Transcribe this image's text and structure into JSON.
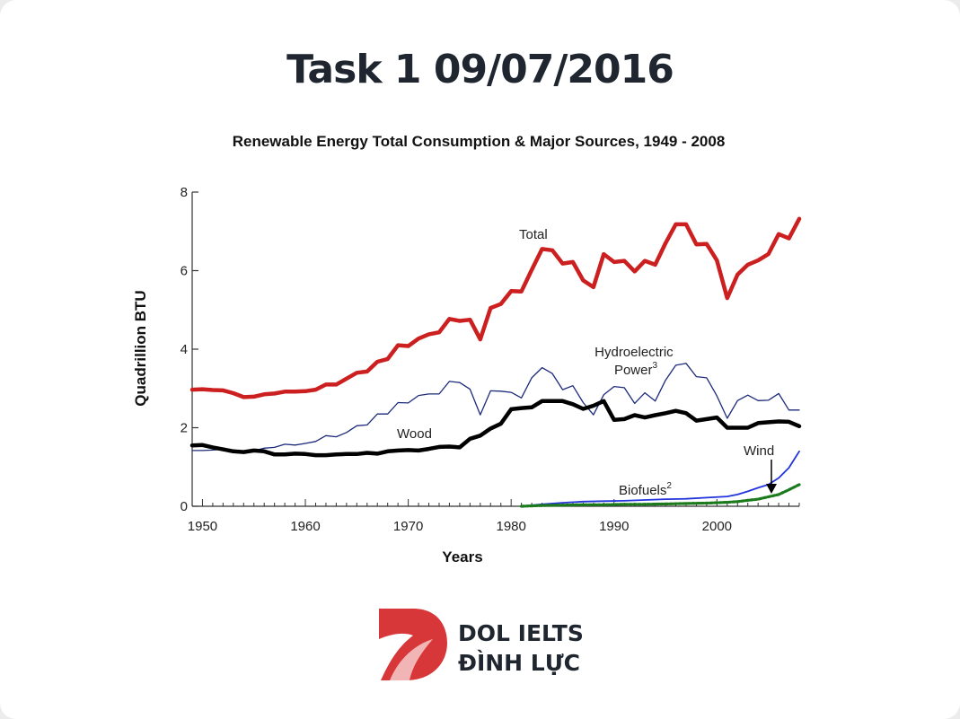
{
  "page": {
    "title": "Task 1 09/07/2016"
  },
  "brand": {
    "line1": "DOL IELTS",
    "line2": "ĐÌNH LỰC"
  },
  "chart_data": {
    "type": "line",
    "title": "Renewable Energy Total Consumption & Major Sources, 1949 - 2008",
    "xlabel": "Years",
    "ylabel": "Quadrillion BTU",
    "xlim": [
      1949,
      2008
    ],
    "ylim": [
      0,
      8
    ],
    "x_ticks": [
      1950,
      1960,
      1970,
      1980,
      1990,
      2000
    ],
    "y_ticks": [
      0,
      2,
      4,
      6,
      8
    ],
    "grid": false,
    "legend": "inline labels",
    "series": [
      {
        "name": "Total",
        "color": "#cc1f1f",
        "points": [
          [
            1949,
            2.97
          ],
          [
            1950,
            2.98
          ],
          [
            1951,
            2.96
          ],
          [
            1952,
            2.95
          ],
          [
            1953,
            2.88
          ],
          [
            1954,
            2.78
          ],
          [
            1955,
            2.79
          ],
          [
            1956,
            2.85
          ],
          [
            1957,
            2.87
          ],
          [
            1958,
            2.92
          ],
          [
            1959,
            2.92
          ],
          [
            1960,
            2.93
          ],
          [
            1961,
            2.97
          ],
          [
            1962,
            3.1
          ],
          [
            1963,
            3.1
          ],
          [
            1964,
            3.25
          ],
          [
            1965,
            3.4
          ],
          [
            1966,
            3.43
          ],
          [
            1967,
            3.68
          ],
          [
            1968,
            3.75
          ],
          [
            1969,
            4.1
          ],
          [
            1970,
            4.08
          ],
          [
            1971,
            4.27
          ],
          [
            1972,
            4.38
          ],
          [
            1973,
            4.43
          ],
          [
            1974,
            4.77
          ],
          [
            1975,
            4.72
          ],
          [
            1976,
            4.75
          ],
          [
            1977,
            4.25
          ],
          [
            1978,
            5.05
          ],
          [
            1979,
            5.15
          ],
          [
            1980,
            5.48
          ],
          [
            1981,
            5.47
          ],
          [
            1982,
            6.02
          ],
          [
            1983,
            6.55
          ],
          [
            1984,
            6.52
          ],
          [
            1985,
            6.18
          ],
          [
            1986,
            6.22
          ],
          [
            1987,
            5.75
          ],
          [
            1988,
            5.58
          ],
          [
            1989,
            6.42
          ],
          [
            1990,
            6.22
          ],
          [
            1991,
            6.25
          ],
          [
            1992,
            5.98
          ],
          [
            1993,
            6.25
          ],
          [
            1994,
            6.15
          ],
          [
            1995,
            6.7
          ],
          [
            1996,
            7.18
          ],
          [
            1997,
            7.18
          ],
          [
            1998,
            6.67
          ],
          [
            1999,
            6.68
          ],
          [
            2000,
            6.26
          ],
          [
            2001,
            5.3
          ],
          [
            2002,
            5.9
          ],
          [
            2003,
            6.15
          ],
          [
            2004,
            6.26
          ],
          [
            2005,
            6.42
          ],
          [
            2006,
            6.93
          ],
          [
            2007,
            6.82
          ],
          [
            2008,
            7.32
          ]
        ]
      },
      {
        "name": "Hydroelectric Power",
        "footnote": "3",
        "color": "#1c2a7a",
        "points": [
          [
            1949,
            1.42
          ],
          [
            1950,
            1.42
          ],
          [
            1951,
            1.43
          ],
          [
            1952,
            1.45
          ],
          [
            1953,
            1.42
          ],
          [
            1954,
            1.37
          ],
          [
            1955,
            1.41
          ],
          [
            1956,
            1.48
          ],
          [
            1957,
            1.5
          ],
          [
            1958,
            1.58
          ],
          [
            1959,
            1.56
          ],
          [
            1960,
            1.6
          ],
          [
            1961,
            1.65
          ],
          [
            1962,
            1.8
          ],
          [
            1963,
            1.77
          ],
          [
            1964,
            1.88
          ],
          [
            1965,
            2.05
          ],
          [
            1966,
            2.07
          ],
          [
            1967,
            2.35
          ],
          [
            1968,
            2.35
          ],
          [
            1969,
            2.64
          ],
          [
            1970,
            2.63
          ],
          [
            1971,
            2.82
          ],
          [
            1972,
            2.86
          ],
          [
            1973,
            2.86
          ],
          [
            1974,
            3.18
          ],
          [
            1975,
            3.15
          ],
          [
            1976,
            2.98
          ],
          [
            1977,
            2.33
          ],
          [
            1978,
            2.94
          ],
          [
            1979,
            2.93
          ],
          [
            1980,
            2.9
          ],
          [
            1981,
            2.76
          ],
          [
            1982,
            3.27
          ],
          [
            1983,
            3.53
          ],
          [
            1984,
            3.38
          ],
          [
            1985,
            2.97
          ],
          [
            1986,
            3.07
          ],
          [
            1987,
            2.64
          ],
          [
            1988,
            2.33
          ],
          [
            1989,
            2.84
          ],
          [
            1990,
            3.05
          ],
          [
            1991,
            3.02
          ],
          [
            1992,
            2.62
          ],
          [
            1993,
            2.89
          ],
          [
            1994,
            2.68
          ],
          [
            1995,
            3.21
          ],
          [
            1996,
            3.59
          ],
          [
            1997,
            3.64
          ],
          [
            1998,
            3.3
          ],
          [
            1999,
            3.27
          ],
          [
            2000,
            2.81
          ],
          [
            2001,
            2.24
          ],
          [
            2002,
            2.69
          ],
          [
            2003,
            2.83
          ],
          [
            2004,
            2.69
          ],
          [
            2005,
            2.7
          ],
          [
            2006,
            2.87
          ],
          [
            2007,
            2.45
          ],
          [
            2008,
            2.45
          ]
        ]
      },
      {
        "name": "Wood",
        "color": "#000000",
        "points": [
          [
            1949,
            1.55
          ],
          [
            1950,
            1.56
          ],
          [
            1951,
            1.5
          ],
          [
            1952,
            1.45
          ],
          [
            1953,
            1.4
          ],
          [
            1954,
            1.38
          ],
          [
            1955,
            1.42
          ],
          [
            1956,
            1.4
          ],
          [
            1957,
            1.32
          ],
          [
            1958,
            1.32
          ],
          [
            1959,
            1.34
          ],
          [
            1960,
            1.33
          ],
          [
            1961,
            1.3
          ],
          [
            1962,
            1.3
          ],
          [
            1963,
            1.32
          ],
          [
            1964,
            1.33
          ],
          [
            1965,
            1.33
          ],
          [
            1966,
            1.36
          ],
          [
            1967,
            1.34
          ],
          [
            1968,
            1.4
          ],
          [
            1969,
            1.42
          ],
          [
            1970,
            1.43
          ],
          [
            1971,
            1.42
          ],
          [
            1972,
            1.46
          ],
          [
            1973,
            1.51
          ],
          [
            1974,
            1.52
          ],
          [
            1975,
            1.5
          ],
          [
            1976,
            1.72
          ],
          [
            1977,
            1.8
          ],
          [
            1978,
            1.98
          ],
          [
            1979,
            2.1
          ],
          [
            1980,
            2.47
          ],
          [
            1981,
            2.5
          ],
          [
            1982,
            2.52
          ],
          [
            1983,
            2.68
          ],
          [
            1984,
            2.68
          ],
          [
            1985,
            2.68
          ],
          [
            1986,
            2.6
          ],
          [
            1987,
            2.48
          ],
          [
            1988,
            2.56
          ],
          [
            1989,
            2.68
          ],
          [
            1990,
            2.2
          ],
          [
            1991,
            2.22
          ],
          [
            1992,
            2.32
          ],
          [
            1993,
            2.26
          ],
          [
            1994,
            2.32
          ],
          [
            1995,
            2.37
          ],
          [
            1996,
            2.43
          ],
          [
            1997,
            2.37
          ],
          [
            1998,
            2.18
          ],
          [
            1999,
            2.22
          ],
          [
            2000,
            2.26
          ],
          [
            2001,
            2.0
          ],
          [
            2002,
            2.0
          ],
          [
            2003,
            2.0
          ],
          [
            2004,
            2.12
          ],
          [
            2005,
            2.14
          ],
          [
            2006,
            2.16
          ],
          [
            2007,
            2.15
          ],
          [
            2008,
            2.04
          ]
        ]
      },
      {
        "name": "Wind",
        "color": "#2233dd",
        "points": [
          [
            1981,
            0.0
          ],
          [
            1983,
            0.05
          ],
          [
            1985,
            0.09
          ],
          [
            1987,
            0.12
          ],
          [
            1989,
            0.13
          ],
          [
            1991,
            0.14
          ],
          [
            1993,
            0.16
          ],
          [
            1995,
            0.18
          ],
          [
            1997,
            0.19
          ],
          [
            1999,
            0.22
          ],
          [
            2001,
            0.25
          ],
          [
            2002,
            0.3
          ],
          [
            2003,
            0.38
          ],
          [
            2004,
            0.47
          ],
          [
            2005,
            0.55
          ],
          [
            2006,
            0.72
          ],
          [
            2007,
            0.98
          ],
          [
            2008,
            1.4
          ]
        ]
      },
      {
        "name": "Biofuels",
        "footnote": "2",
        "color": "#1b7a1b",
        "points": [
          [
            1981,
            0.0
          ],
          [
            1983,
            0.02
          ],
          [
            1985,
            0.03
          ],
          [
            1987,
            0.04
          ],
          [
            1989,
            0.04
          ],
          [
            1991,
            0.05
          ],
          [
            1993,
            0.05
          ],
          [
            1995,
            0.06
          ],
          [
            1997,
            0.07
          ],
          [
            1999,
            0.08
          ],
          [
            2001,
            0.1
          ],
          [
            2002,
            0.12
          ],
          [
            2003,
            0.15
          ],
          [
            2004,
            0.18
          ],
          [
            2005,
            0.24
          ],
          [
            2006,
            0.3
          ],
          [
            2007,
            0.42
          ],
          [
            2008,
            0.55
          ]
        ]
      }
    ]
  }
}
